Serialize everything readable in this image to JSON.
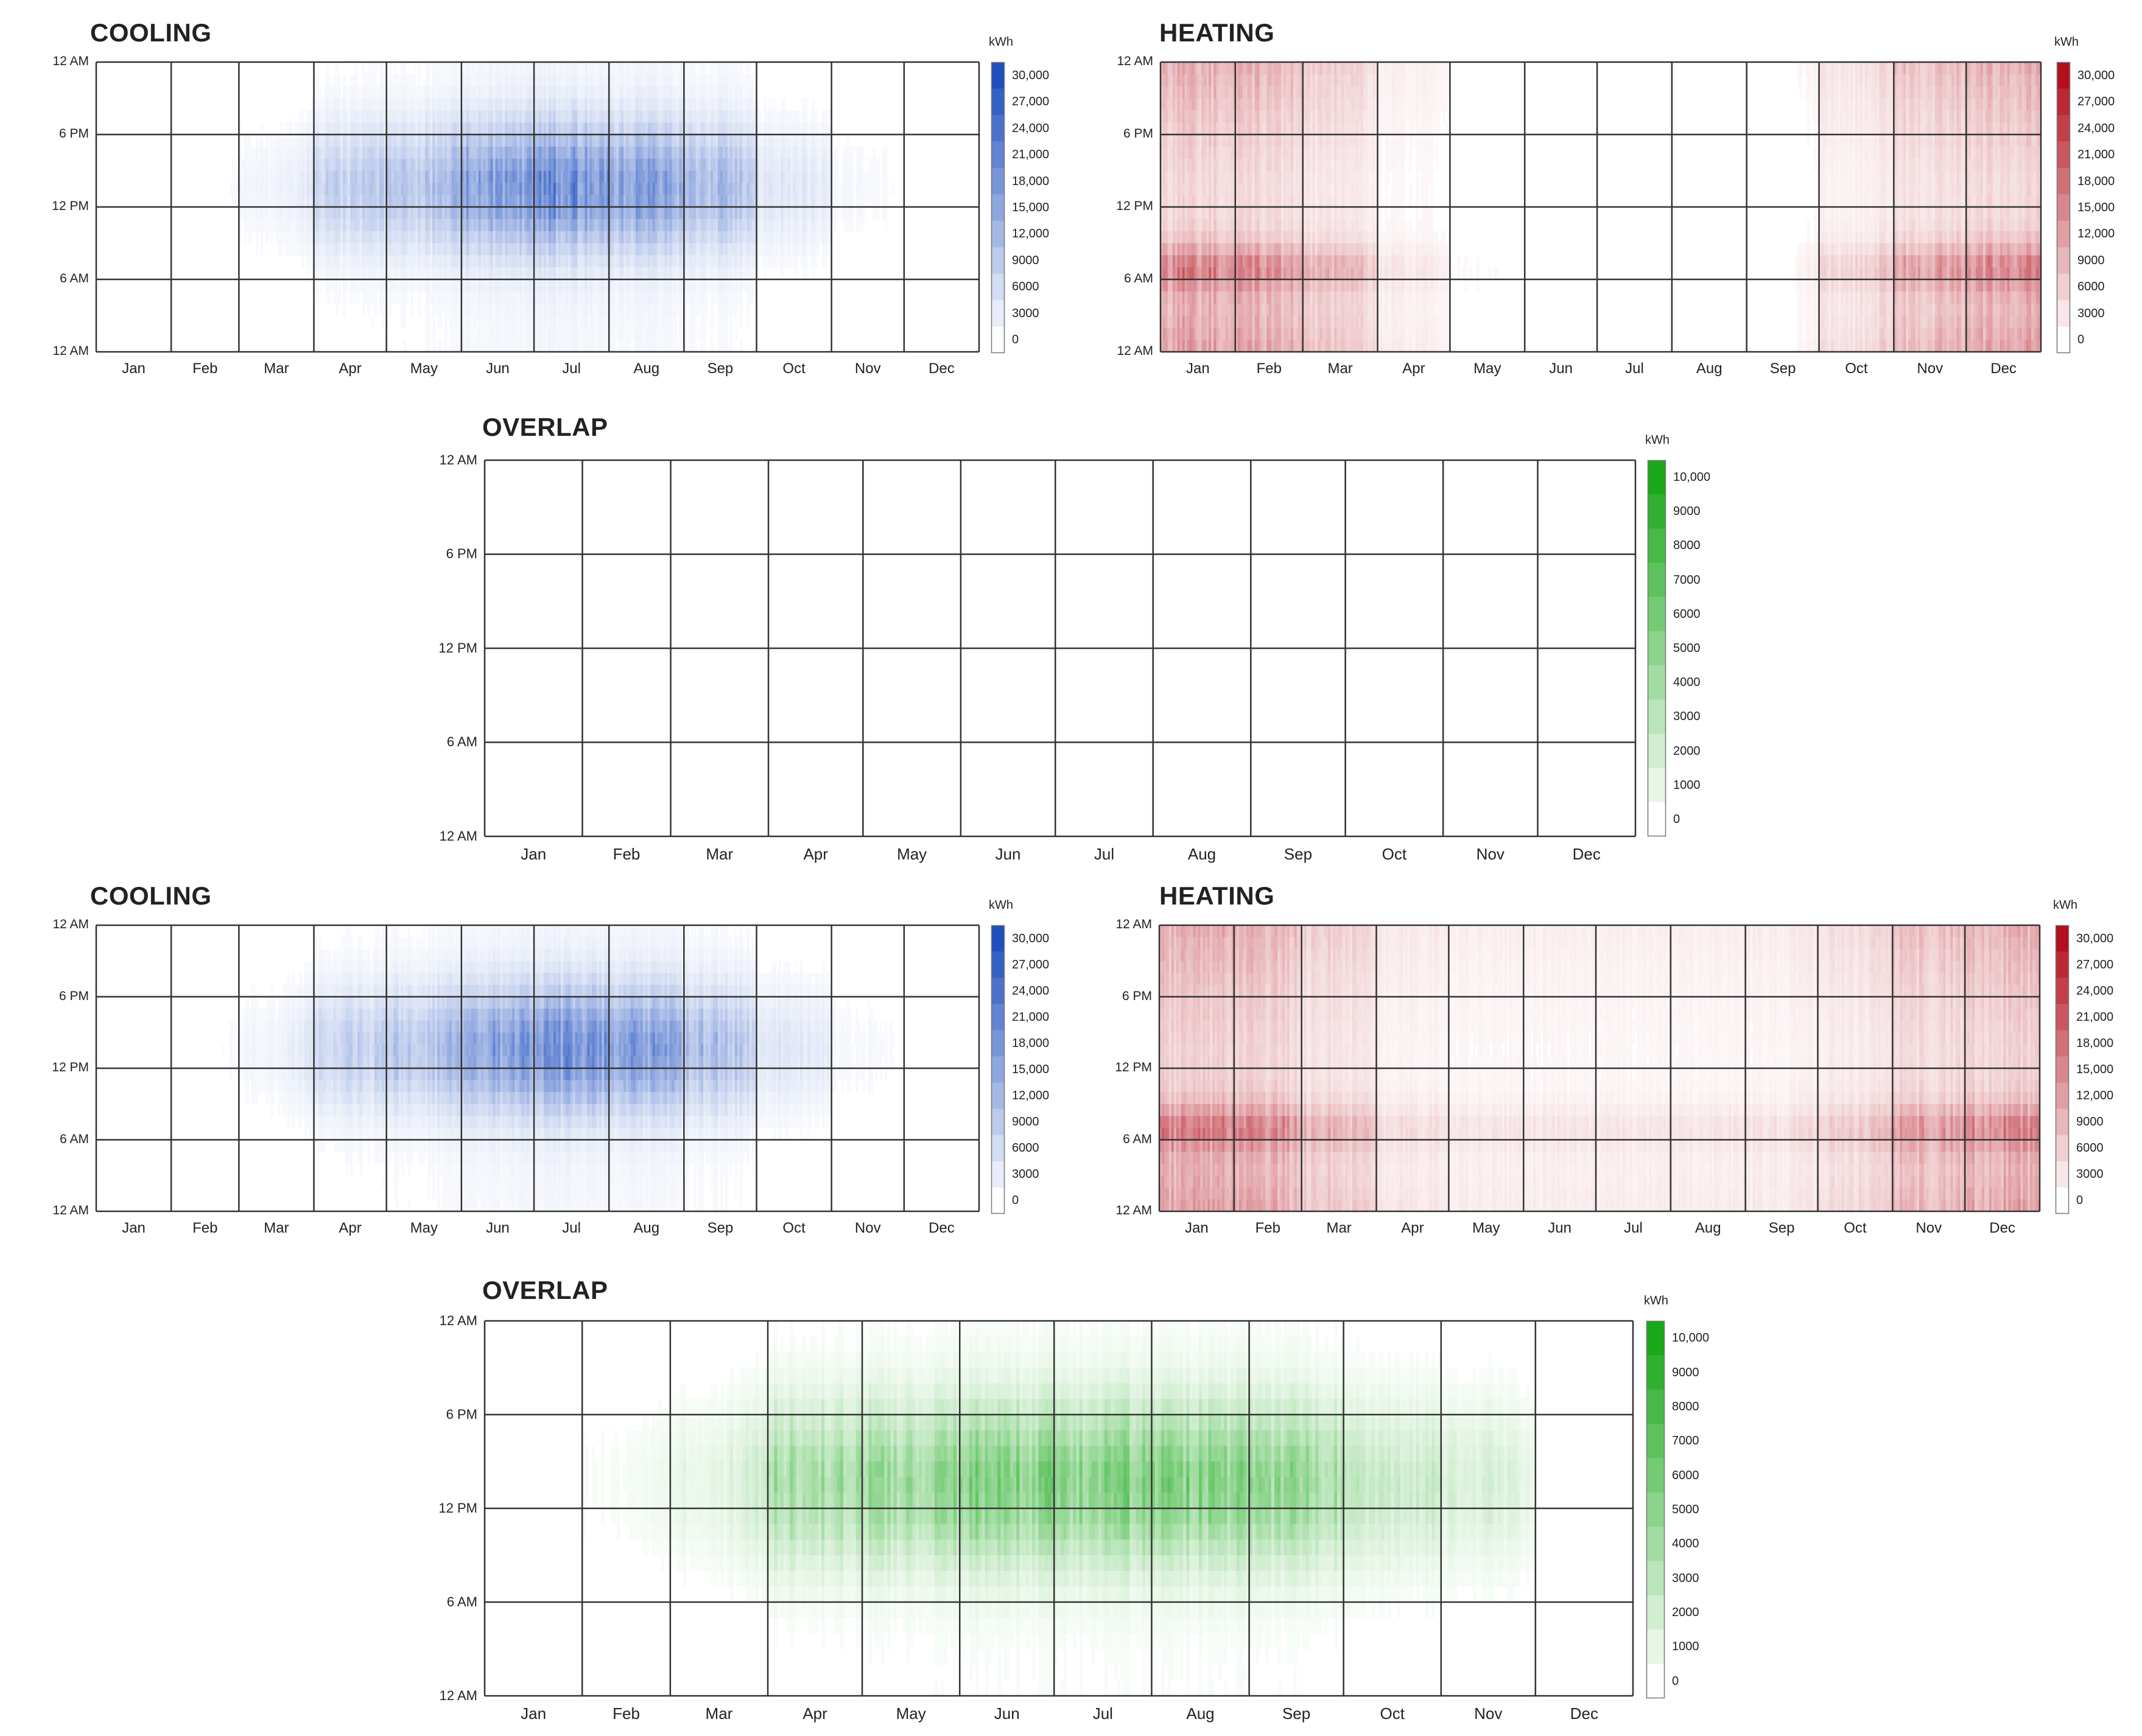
{
  "charts": [
    {
      "id": "cooling-1",
      "title": "COOLING",
      "type": "heatmap",
      "color": "#1f4fbf",
      "unit": "kWh",
      "ticks": [
        "30,000",
        "27,000",
        "24,000",
        "21,000",
        "18,000",
        "15,000",
        "12,000",
        "9000",
        "6000",
        "3000",
        "0"
      ],
      "max": 30000,
      "hours": [
        "12 AM",
        "6 PM",
        "12 PM",
        "6 AM",
        "12 AM"
      ],
      "months": [
        "Jan",
        "Feb",
        "Mar",
        "Apr",
        "May",
        "Jun",
        "Jul",
        "Aug",
        "Sep",
        "Oct",
        "Nov",
        "Dec"
      ],
      "profile": {
        "monthly": [
          0.0,
          0.02,
          0.08,
          0.35,
          0.45,
          0.75,
          0.9,
          0.75,
          0.55,
          0.2,
          0.06,
          0.0
        ],
        "night": 0.08,
        "day": 1.0
      }
    },
    {
      "id": "heating-1",
      "title": "HEATING",
      "type": "heatmap",
      "color": "#b30f1c",
      "unit": "kWh",
      "ticks": [
        "30,000",
        "27,000",
        "24,000",
        "21,000",
        "18,000",
        "15,000",
        "12,000",
        "9000",
        "6000",
        "3000",
        "0"
      ],
      "max": 30000,
      "hours": [
        "12 AM",
        "6 PM",
        "12 PM",
        "6 AM",
        "12 AM"
      ],
      "months": [
        "Jan",
        "Feb",
        "Mar",
        "Apr",
        "May",
        "Jun",
        "Jul",
        "Aug",
        "Sep",
        "Oct",
        "Nov",
        "Dec"
      ],
      "profile": {
        "monthly": [
          0.9,
          0.85,
          0.55,
          0.18,
          0.05,
          0.0,
          0.0,
          0.0,
          0.02,
          0.3,
          0.7,
          0.85
        ],
        "night": 0.6,
        "day": 0.25,
        "peak": 1.0
      }
    },
    {
      "id": "overlap-1",
      "title": "OVERLAP",
      "type": "heatmap",
      "color": "#18a818",
      "unit": "kWh",
      "ticks": [
        "10,000",
        "9000",
        "8000",
        "7000",
        "6000",
        "5000",
        "4000",
        "3000",
        "2000",
        "1000",
        "0"
      ],
      "max": 10000,
      "hours": [
        "12 AM",
        "6 PM",
        "12 PM",
        "6 AM",
        "12 AM"
      ],
      "months": [
        "Jan",
        "Feb",
        "Mar",
        "Apr",
        "May",
        "Jun",
        "Jul",
        "Aug",
        "Sep",
        "Oct",
        "Nov",
        "Dec"
      ],
      "profile": {
        "monthly": [
          0.0,
          0.02,
          0.03,
          0.03,
          0.0,
          0.0,
          0.0,
          0.0,
          0.01,
          0.03,
          0.03,
          0.0
        ],
        "night": 0.0,
        "day": 0.4
      }
    },
    {
      "id": "cooling-2",
      "title": "COOLING",
      "type": "heatmap",
      "color": "#1f4fbf",
      "unit": "kWh",
      "ticks": [
        "30,000",
        "27,000",
        "24,000",
        "21,000",
        "18,000",
        "15,000",
        "12,000",
        "9000",
        "6000",
        "3000",
        "0"
      ],
      "max": 30000,
      "hours": [
        "12 AM",
        "6 PM",
        "12 PM",
        "6 AM",
        "12 AM"
      ],
      "months": [
        "Jan",
        "Feb",
        "Mar",
        "Apr",
        "May",
        "Jun",
        "Jul",
        "Aug",
        "Sep",
        "Oct",
        "Nov",
        "Dec"
      ],
      "profile": {
        "monthly": [
          0.0,
          0.02,
          0.08,
          0.35,
          0.45,
          0.75,
          0.9,
          0.75,
          0.55,
          0.2,
          0.06,
          0.0
        ],
        "night": 0.08,
        "day": 1.0
      }
    },
    {
      "id": "heating-2",
      "title": "HEATING",
      "type": "heatmap",
      "color": "#b30f1c",
      "unit": "kWh",
      "ticks": [
        "30,000",
        "27,000",
        "24,000",
        "21,000",
        "18,000",
        "15,000",
        "12,000",
        "9000",
        "6000",
        "3000",
        "0"
      ],
      "max": 30000,
      "hours": [
        "12 AM",
        "6 PM",
        "12 PM",
        "6 AM",
        "12 AM"
      ],
      "months": [
        "Jan",
        "Feb",
        "Mar",
        "Apr",
        "May",
        "Jun",
        "Jul",
        "Aug",
        "Sep",
        "Oct",
        "Nov",
        "Dec"
      ],
      "profile": {
        "monthly": [
          0.9,
          0.85,
          0.55,
          0.25,
          0.18,
          0.18,
          0.18,
          0.18,
          0.2,
          0.35,
          0.7,
          0.85
        ],
        "night": 0.6,
        "day": 0.3,
        "peak": 1.0
      }
    },
    {
      "id": "overlap-2",
      "title": "OVERLAP",
      "type": "heatmap",
      "color": "#18a818",
      "unit": "kWh",
      "ticks": [
        "10,000",
        "9000",
        "8000",
        "7000",
        "6000",
        "5000",
        "4000",
        "3000",
        "2000",
        "1000",
        "0"
      ],
      "max": 10000,
      "hours": [
        "12 AM",
        "6 PM",
        "12 PM",
        "6 AM",
        "12 AM"
      ],
      "months": [
        "Jan",
        "Feb",
        "Mar",
        "Apr",
        "May",
        "Jun",
        "Jul",
        "Aug",
        "Sep",
        "Oct",
        "Nov",
        "Dec"
      ],
      "profile": {
        "monthly": [
          0.0,
          0.05,
          0.15,
          0.55,
          0.6,
          0.75,
          0.75,
          0.75,
          0.65,
          0.35,
          0.25,
          0.0
        ],
        "night": 0.05,
        "day": 1.0
      }
    }
  ],
  "chart_data": [
    {
      "type": "heatmap",
      "title": "COOLING",
      "unit": "kWh",
      "range": [
        0,
        30000
      ],
      "x_categories": [
        "Jan",
        "Feb",
        "Mar",
        "Apr",
        "May",
        "Jun",
        "Jul",
        "Aug",
        "Sep",
        "Oct",
        "Nov",
        "Dec"
      ],
      "y_categories": [
        "12 AM",
        "6 PM",
        "12 PM",
        "6 AM",
        "12 AM"
      ],
      "approx_monthly_peak_kWh": [
        0,
        600,
        2400,
        10500,
        13500,
        22500,
        27000,
        22500,
        16500,
        6000,
        1800,
        0
      ]
    },
    {
      "type": "heatmap",
      "title": "HEATING",
      "unit": "kWh",
      "range": [
        0,
        30000
      ],
      "x_categories": [
        "Jan",
        "Feb",
        "Mar",
        "Apr",
        "May",
        "Jun",
        "Jul",
        "Aug",
        "Sep",
        "Oct",
        "Nov",
        "Dec"
      ],
      "y_categories": [
        "12 AM",
        "6 PM",
        "12 PM",
        "6 AM",
        "12 AM"
      ],
      "approx_monthly_peak_kWh": [
        27000,
        25500,
        16500,
        5400,
        1500,
        0,
        0,
        0,
        600,
        9000,
        21000,
        25500
      ]
    },
    {
      "type": "heatmap",
      "title": "OVERLAP",
      "unit": "kWh",
      "range": [
        0,
        10000
      ],
      "x_categories": [
        "Jan",
        "Feb",
        "Mar",
        "Apr",
        "May",
        "Jun",
        "Jul",
        "Aug",
        "Sep",
        "Oct",
        "Nov",
        "Dec"
      ],
      "y_categories": [
        "12 AM",
        "6 PM",
        "12 PM",
        "6 AM",
        "12 AM"
      ],
      "approx_monthly_peak_kWh": [
        0,
        200,
        300,
        300,
        0,
        0,
        0,
        0,
        100,
        300,
        300,
        0
      ]
    },
    {
      "type": "heatmap",
      "title": "COOLING",
      "unit": "kWh",
      "range": [
        0,
        30000
      ],
      "x_categories": [
        "Jan",
        "Feb",
        "Mar",
        "Apr",
        "May",
        "Jun",
        "Jul",
        "Aug",
        "Sep",
        "Oct",
        "Nov",
        "Dec"
      ],
      "y_categories": [
        "12 AM",
        "6 PM",
        "12 PM",
        "6 AM",
        "12 AM"
      ],
      "approx_monthly_peak_kWh": [
        0,
        600,
        2400,
        10500,
        13500,
        22500,
        27000,
        22500,
        16500,
        6000,
        1800,
        0
      ]
    },
    {
      "type": "heatmap",
      "title": "HEATING",
      "unit": "kWh",
      "range": [
        0,
        30000
      ],
      "x_categories": [
        "Jan",
        "Feb",
        "Mar",
        "Apr",
        "May",
        "Jun",
        "Jul",
        "Aug",
        "Sep",
        "Oct",
        "Nov",
        "Dec"
      ],
      "y_categories": [
        "12 AM",
        "6 PM",
        "12 PM",
        "6 AM",
        "12 AM"
      ],
      "approx_monthly_peak_kWh": [
        27000,
        25500,
        16500,
        7500,
        5400,
        5400,
        5400,
        5400,
        6000,
        10500,
        21000,
        25500
      ]
    },
    {
      "type": "heatmap",
      "title": "OVERLAP",
      "unit": "kWh",
      "range": [
        0,
        10000
      ],
      "x_categories": [
        "Jan",
        "Feb",
        "Mar",
        "Apr",
        "May",
        "Jun",
        "Jul",
        "Aug",
        "Sep",
        "Oct",
        "Nov",
        "Dec"
      ],
      "y_categories": [
        "12 AM",
        "6 PM",
        "12 PM",
        "6 AM",
        "12 AM"
      ],
      "approx_monthly_peak_kWh": [
        0,
        500,
        1500,
        5500,
        6000,
        7500,
        7500,
        7500,
        6500,
        3500,
        2500,
        0
      ]
    }
  ]
}
